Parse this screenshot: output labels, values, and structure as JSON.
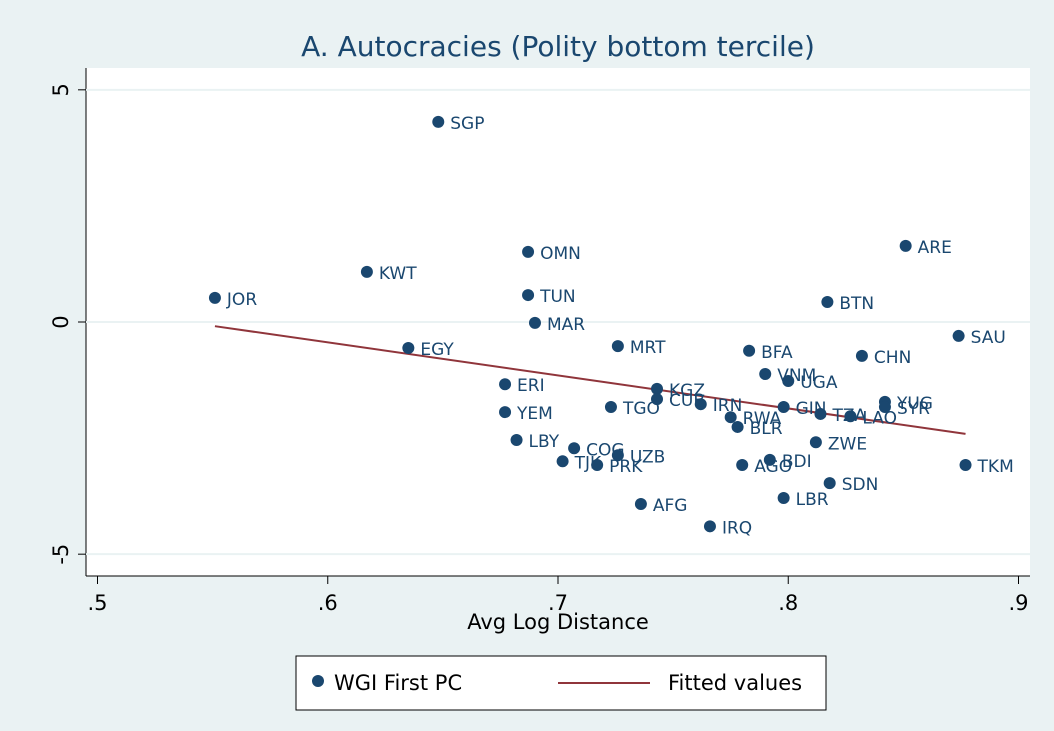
{
  "chart_data": {
    "type": "scatter",
    "title": "A. Autocracies (Polity bottom tercile)",
    "x_label": "Avg Log Distance",
    "xlim": [
      0.495,
      0.905
    ],
    "xticks": [
      {
        "value": 0.5,
        "label": ".5"
      },
      {
        "value": 0.6,
        "label": ".6"
      },
      {
        "value": 0.7,
        "label": ".7"
      },
      {
        "value": 0.8,
        "label": ".8"
      },
      {
        "value": 0.9,
        "label": ".9"
      }
    ],
    "ylim": [
      -5.47,
      5.47
    ],
    "yticks": [
      -5,
      0,
      5
    ],
    "grid": true,
    "legend": "bottom",
    "series": [
      {
        "name": "WGI First PC",
        "type": "scatter",
        "color": "#1a476f",
        "labels": [
          "SGP",
          "JOR",
          "KWT",
          "OMN",
          "TUN",
          "MAR",
          "EGY",
          "MRT",
          "ERI",
          "YEM",
          "LBY",
          "COG",
          "TJK",
          "UZB",
          "PRK",
          "TGO",
          "AFG",
          "IRQ",
          "KGZ",
          "CUB",
          "IRN",
          "BFA",
          "VNM",
          "UGA",
          "BTN",
          "CHN",
          "SAU",
          "ARE",
          "YUG",
          "SYR",
          "RWA",
          "BLR",
          "GIN",
          "TZA",
          "LAO",
          "ZWE",
          "BDI",
          "AGO",
          "SDN",
          "LBR",
          "TKM"
        ],
        "x": [
          0.648,
          0.551,
          0.617,
          0.687,
          0.687,
          0.69,
          0.635,
          0.726,
          0.677,
          0.677,
          0.682,
          0.707,
          0.702,
          0.726,
          0.717,
          0.723,
          0.736,
          0.766,
          0.743,
          0.743,
          0.762,
          0.783,
          0.79,
          0.8,
          0.817,
          0.832,
          0.874,
          0.851,
          0.842,
          0.842,
          0.775,
          0.778,
          0.798,
          0.814,
          0.827,
          0.812,
          0.792,
          0.78,
          0.818,
          0.798,
          0.877
        ],
        "values": [
          4.31,
          0.52,
          1.08,
          1.51,
          0.58,
          -0.02,
          -0.56,
          -0.52,
          -1.34,
          -1.94,
          -2.54,
          -2.72,
          -3.0,
          -2.87,
          -3.08,
          -1.83,
          -3.92,
          -4.4,
          -1.44,
          -1.66,
          -1.77,
          -0.62,
          -1.12,
          -1.27,
          0.43,
          -0.73,
          -0.3,
          1.64,
          -1.72,
          -1.83,
          -2.05,
          -2.26,
          -1.83,
          -1.98,
          -2.03,
          -2.59,
          -2.97,
          -3.08,
          -3.47,
          -3.79,
          -3.08
        ]
      },
      {
        "name": "Fitted values",
        "type": "line",
        "color": "#90353b",
        "x": [
          0.551,
          0.877
        ],
        "values": [
          -0.09,
          -2.41
        ]
      }
    ]
  }
}
